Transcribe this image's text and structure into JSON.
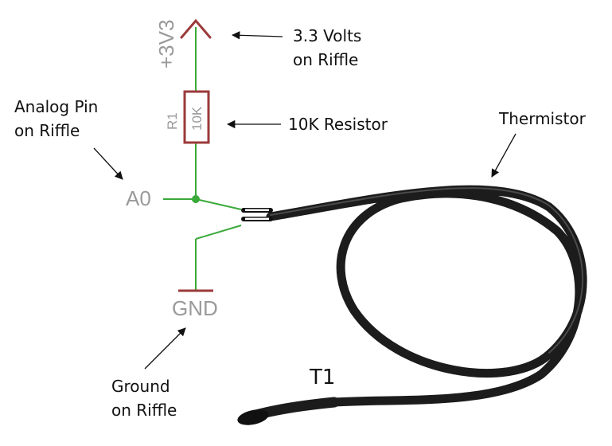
{
  "schematic": {
    "supply_label": "+3V3",
    "resistor_ref": "R1",
    "resistor_value": "10K",
    "pin_label": "A0",
    "ground_label": "GND",
    "part_label": "T1"
  },
  "annotations": {
    "supply_line1": "3.3 Volts",
    "supply_line2": "on Riffle",
    "resistor": "10K Resistor",
    "analog_line1": "Analog Pin",
    "analog_line2": "on Riffle",
    "thermistor": "Thermistor",
    "ground_line1": "Ground",
    "ground_line2": "on Riffle"
  },
  "colors": {
    "wire": "#3aaa3a",
    "component": "#9b3a3a",
    "label_gray": "#9a9a9a",
    "cable": "#1c1c1c",
    "text": "#111111"
  }
}
